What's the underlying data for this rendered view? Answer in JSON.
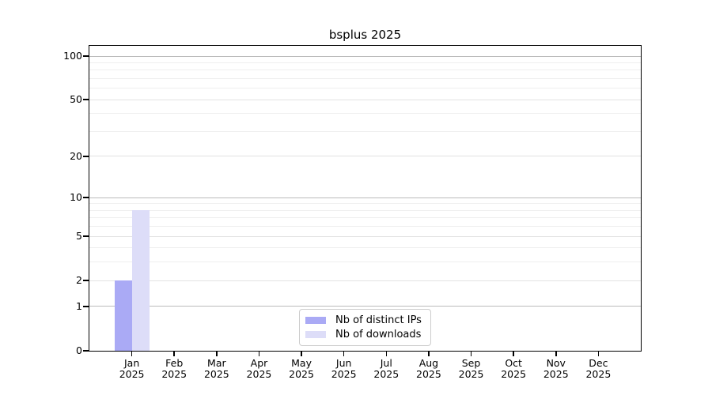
{
  "chart_data": {
    "type": "bar",
    "title": "bsplus 2025",
    "categories": [
      "Jan 2025",
      "Feb 2025",
      "Mar 2025",
      "Apr 2025",
      "May 2025",
      "Jun 2025",
      "Jul 2025",
      "Aug 2025",
      "Sep 2025",
      "Oct 2025",
      "Nov 2025",
      "Dec 2025"
    ],
    "series": [
      {
        "name": "Nb of distinct IPs",
        "color": "#aaaaf5",
        "values": [
          2,
          0,
          0,
          0,
          0,
          0,
          0,
          0,
          0,
          0,
          0,
          0
        ]
      },
      {
        "name": "Nb of downloads",
        "color": "#ddddf8",
        "values": [
          8,
          0,
          0,
          0,
          0,
          0,
          0,
          0,
          0,
          0,
          0,
          0
        ]
      }
    ],
    "xlabel": "",
    "ylabel": "",
    "yscale": "log1p",
    "ylim": [
      0,
      117
    ],
    "yticks": [
      0,
      1,
      2,
      5,
      10,
      20,
      50,
      100
    ],
    "minor_yticks": [
      3,
      4,
      6,
      7,
      8,
      9,
      30,
      40,
      60,
      70,
      80,
      90
    ],
    "grid": true,
    "legend_position": "lower center inside"
  },
  "colors": {
    "axis": "#000000",
    "grid_decade": "#bbbbbb",
    "grid_major": "#e2e2e2",
    "grid_minor": "#efefef",
    "legend_border": "#cccccc",
    "legend_bg": "#ffffff",
    "text": "#000000"
  }
}
